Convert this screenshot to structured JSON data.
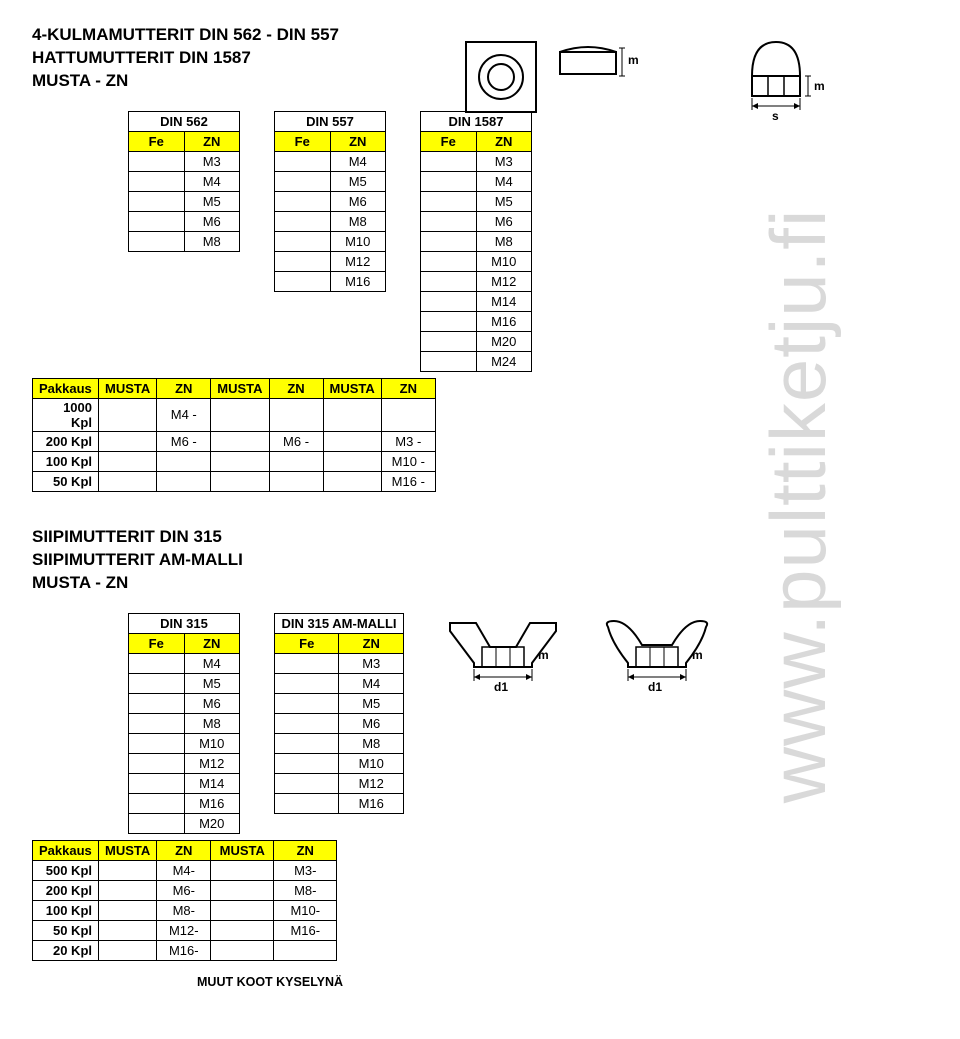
{
  "titles": {
    "line1": "4-KULMAMUTTERIT DIN 562 - DIN 557",
    "line2": "HATTUMUTTERIT DIN 1587",
    "line3": "MUSTA - ZN"
  },
  "watermark": "www.pulttiketju.fi",
  "tableA": {
    "name": "DIN 562",
    "col1": "Fe",
    "col2": "ZN",
    "rows": [
      "M3",
      "M4",
      "M5",
      "M6",
      "M8"
    ]
  },
  "tableB": {
    "name": "DIN 557",
    "col1": "Fe",
    "col2": "ZN",
    "rows": [
      "M4",
      "M5",
      "M6",
      "M8",
      "M10",
      "M12",
      "M16"
    ]
  },
  "tableC": {
    "name": "DIN 1587",
    "col1": "Fe",
    "col2": "ZN",
    "rows": [
      "M3",
      "M4",
      "M5",
      "M6",
      "M8",
      "M10",
      "M12",
      "M14",
      "M16",
      "M20",
      "M24"
    ]
  },
  "pakkaus1": {
    "header": [
      "Pakkaus",
      "MUSTA",
      "ZN",
      "MUSTA",
      "ZN",
      "MUSTA",
      "ZN"
    ],
    "rows": [
      {
        "label": "1000 Kpl",
        "cells": [
          "",
          "M4 -",
          "",
          "",
          "",
          ""
        ]
      },
      {
        "label": "200 Kpl",
        "cells": [
          "",
          "M6 -",
          "",
          "M6 -",
          "",
          "M3 -"
        ]
      },
      {
        "label": "100 Kpl",
        "cells": [
          "",
          "",
          "",
          "",
          "",
          "M10 -"
        ]
      },
      {
        "label": "50 Kpl",
        "cells": [
          "",
          "",
          "",
          "",
          "",
          "M16 -"
        ]
      }
    ]
  },
  "section2": {
    "line1": "SIIPIMUTTERIT DIN 315",
    "line2": "SIIPIMUTTERIT AM-MALLI",
    "line3": "MUSTA - ZN"
  },
  "tableD": {
    "name": "DIN 315",
    "col1": "Fe",
    "col2": "ZN",
    "rows": [
      "M4",
      "M5",
      "M6",
      "M8",
      "M10",
      "M12",
      "M14",
      "M16",
      "M20"
    ]
  },
  "tableE": {
    "name": "DIN 315 AM-MALLI",
    "col1": "Fe",
    "col2": "ZN",
    "rows": [
      "M3",
      "M4",
      "M5",
      "M6",
      "M8",
      "M10",
      "M12",
      "M16"
    ]
  },
  "pakkaus2": {
    "header": [
      "Pakkaus",
      "MUSTA",
      "ZN",
      "MUSTA",
      "ZN"
    ],
    "rows": [
      {
        "label": "500 Kpl",
        "cells": [
          "",
          "M4-",
          "",
          "M3-"
        ]
      },
      {
        "label": "200 Kpl",
        "cells": [
          "",
          "M6-",
          "",
          "M8-"
        ]
      },
      {
        "label": "100 Kpl",
        "cells": [
          "",
          "M8-",
          "",
          "M10-"
        ]
      },
      {
        "label": "50 Kpl",
        "cells": [
          "",
          "M12-",
          "",
          "M16-"
        ]
      },
      {
        "label": "20 Kpl",
        "cells": [
          "",
          "M16-",
          "",
          ""
        ]
      }
    ]
  },
  "footnote": "MUUT KOOT KYSELYNÄ",
  "labels": {
    "s": "s",
    "m": "m",
    "d1": "d1",
    "arrow": "→"
  },
  "style": {
    "yellow": "#ffff00",
    "border": "#000000",
    "watermark_color": "#d9d9d9",
    "font_body": 13,
    "font_title": 17,
    "col_width_half": 54
  }
}
